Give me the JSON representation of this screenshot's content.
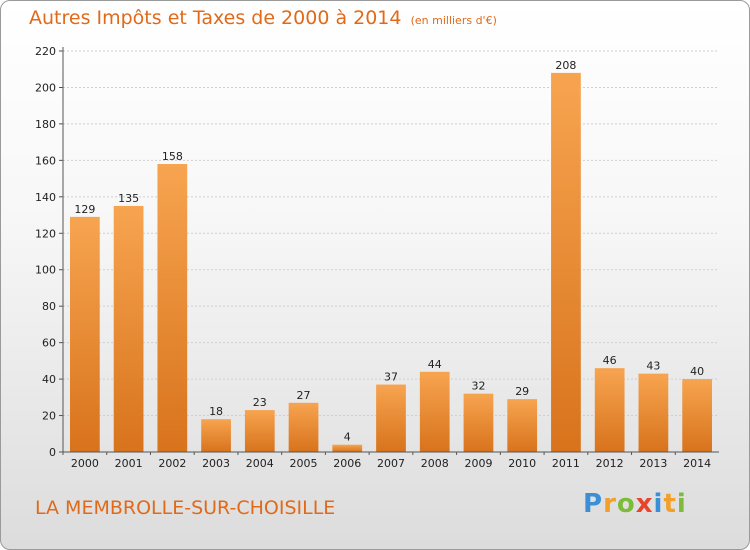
{
  "chart_data": {
    "type": "bar",
    "title": "Autres Impôts et Taxes de 2000 à 2014",
    "subtitle": "(en milliers d'€)",
    "categories": [
      "2000",
      "2001",
      "2002",
      "2003",
      "2004",
      "2005",
      "2006",
      "2007",
      "2008",
      "2009",
      "2010",
      "2011",
      "2012",
      "2013",
      "2014"
    ],
    "values": [
      129,
      135,
      158,
      18,
      23,
      27,
      4,
      37,
      44,
      32,
      29,
      208,
      46,
      43,
      40
    ],
    "ylim": [
      0,
      220
    ],
    "yticks": [
      0,
      20,
      40,
      60,
      80,
      100,
      120,
      140,
      160,
      180,
      200,
      220
    ],
    "grid": true,
    "bar_color": "#f0902f"
  },
  "place_label": "LA MEMBROLLE-SUR-CHOISILLE",
  "logo": {
    "text": "Proxiti",
    "letters": [
      {
        "ch": "P",
        "color": "#3a8fd6"
      },
      {
        "ch": "r",
        "color": "#f2a02a"
      },
      {
        "ch": "o",
        "color": "#7dbb3a"
      },
      {
        "ch": "x",
        "color": "#e8452c"
      },
      {
        "ch": "i",
        "color": "#3a8fd6"
      },
      {
        "ch": "t",
        "color": "#f2a02a"
      },
      {
        "ch": "i",
        "color": "#7dbb3a"
      }
    ]
  }
}
